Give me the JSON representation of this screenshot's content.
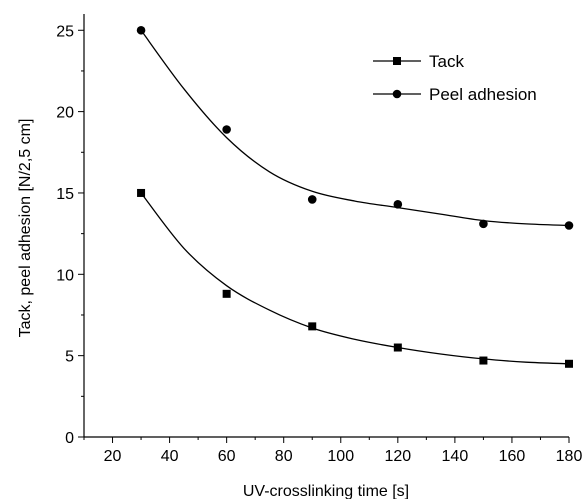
{
  "chart_data": {
    "type": "scatter",
    "title": "",
    "xlabel": "UV-crosslinking time [s]",
    "ylabel": "Tack, peel adhesion [N/2,5 cm]",
    "xlim": [
      10,
      180
    ],
    "ylim": [
      0,
      26
    ],
    "x_ticks": [
      20,
      40,
      60,
      80,
      100,
      120,
      140,
      160,
      180
    ],
    "y_ticks": [
      0,
      5,
      10,
      15,
      20,
      25
    ],
    "grid": false,
    "legend_position": "top-right",
    "series": [
      {
        "name": "Tack",
        "marker": "square",
        "x": [
          30,
          60,
          90,
          120,
          150,
          180
        ],
        "y": [
          15.0,
          8.8,
          6.8,
          5.5,
          4.7,
          4.5
        ],
        "fit_curve": [
          [
            30,
            15.0
          ],
          [
            45,
            11.6
          ],
          [
            60,
            9.3
          ],
          [
            75,
            7.8
          ],
          [
            90,
            6.7
          ],
          [
            105,
            6.0
          ],
          [
            120,
            5.5
          ],
          [
            135,
            5.1
          ],
          [
            150,
            4.8
          ],
          [
            165,
            4.6
          ],
          [
            180,
            4.5
          ]
        ]
      },
      {
        "name": "Peel adhesion",
        "marker": "circle",
        "x": [
          30,
          60,
          90,
          120,
          150,
          180
        ],
        "y": [
          25.0,
          18.9,
          14.6,
          14.3,
          13.1,
          13.0
        ],
        "fit_curve": [
          [
            30,
            25.0
          ],
          [
            45,
            21.4
          ],
          [
            60,
            18.4
          ],
          [
            75,
            16.3
          ],
          [
            90,
            15.1
          ],
          [
            105,
            14.5
          ],
          [
            120,
            14.1
          ],
          [
            135,
            13.7
          ],
          [
            150,
            13.3
          ],
          [
            165,
            13.1
          ],
          [
            180,
            13.0
          ]
        ]
      }
    ]
  }
}
